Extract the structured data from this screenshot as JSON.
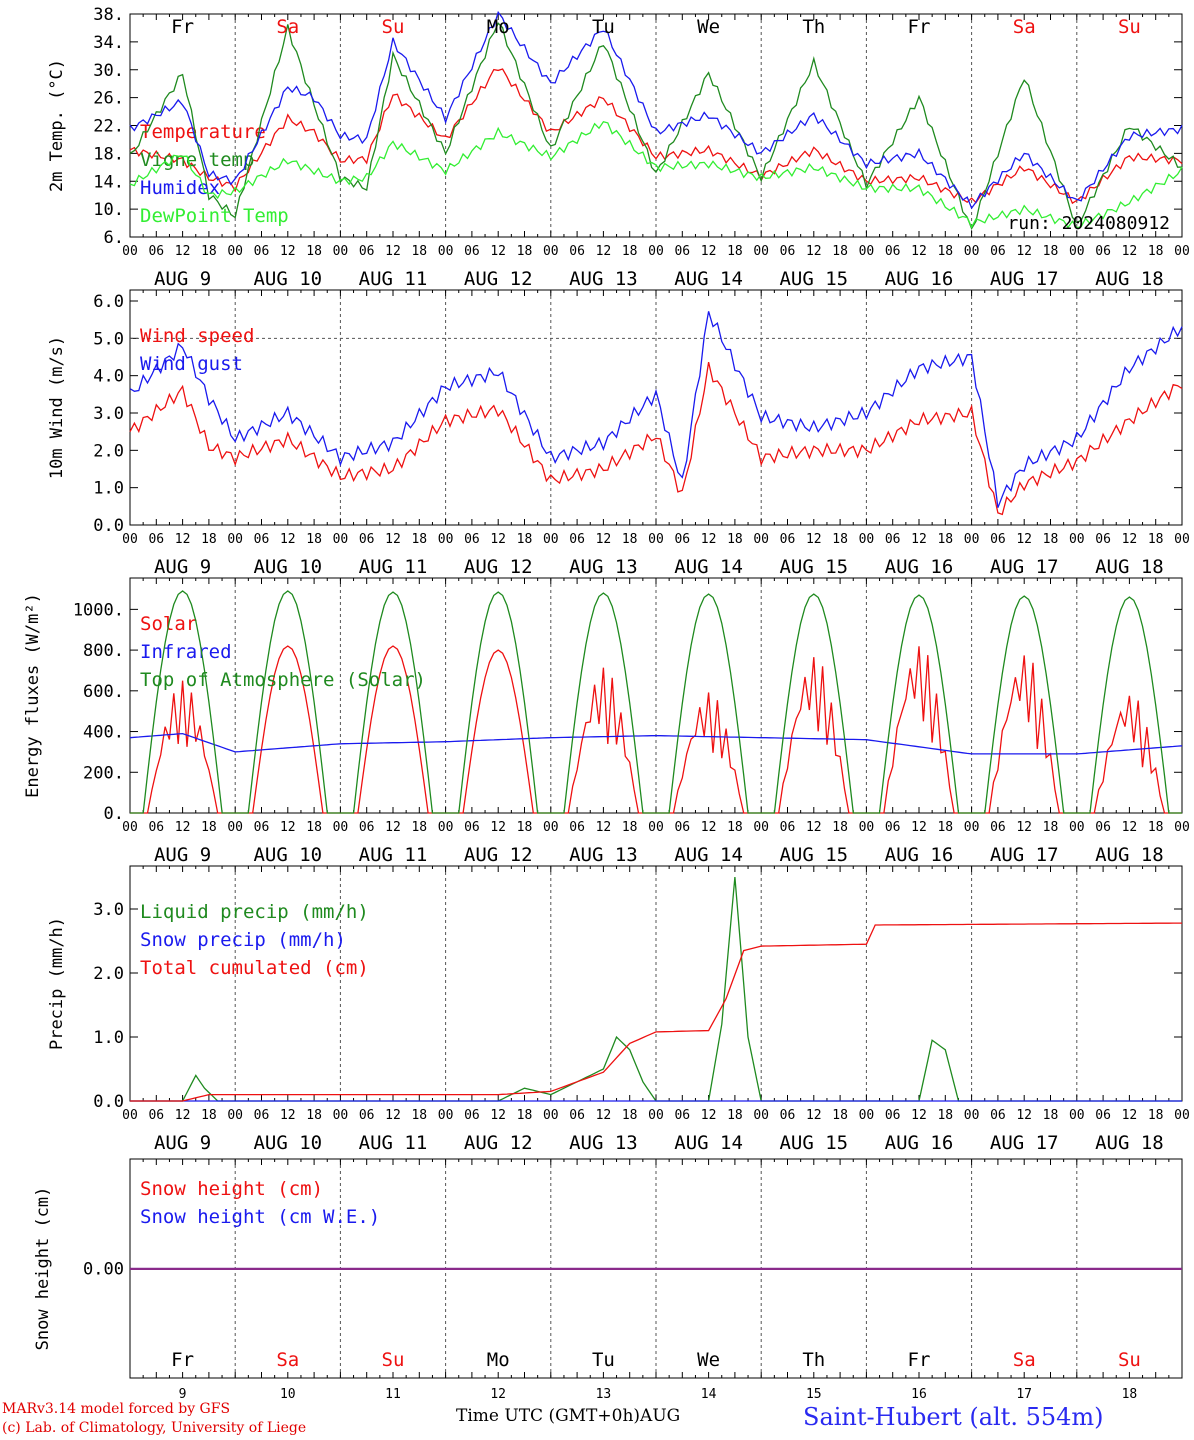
{
  "colors": {
    "red": "#ee1111",
    "blue": "#1a1aee",
    "darkgreen": "#1f8a1f",
    "lightgreen": "#33ee33",
    "purple": "#8a2a8a",
    "grid": "#555555"
  },
  "days": {
    "weekday_labels": [
      "Fr",
      "Sa",
      "Su",
      "Mo",
      "Tu",
      "We",
      "Th",
      "Fr",
      "Sa",
      "Su"
    ],
    "weekend_flags": [
      false,
      true,
      true,
      false,
      false,
      false,
      false,
      false,
      true,
      true
    ],
    "date_labels": [
      "AUG  9",
      "AUG 10",
      "AUG 11",
      "AUG 12",
      "AUG 13",
      "AUG 14",
      "AUG 15",
      "AUG 16",
      "AUG 17",
      "AUG 18"
    ],
    "day_numbers": [
      "9",
      "10",
      "11",
      "12",
      "13",
      "14",
      "15",
      "16",
      "17",
      "18"
    ],
    "hour_labels": [
      "00",
      "06",
      "12",
      "18"
    ],
    "final_hour_label": "00"
  },
  "footer": {
    "credit_line1": "MARv3.14 model forced by GFS",
    "credit_line2": "(c) Lab. of Climatology, University of Liege",
    "x_title": "Time UTC (GMT+0h)AUG",
    "station": "Saint-Hubert (alt. 554m)"
  },
  "chart_data": [
    {
      "type": "line",
      "ylabel": "2m Temp. (°C)",
      "ylim": [
        6,
        38
      ],
      "yticks": [
        "38.",
        "34.",
        "30.",
        "26.",
        "22.",
        "18.",
        "14.",
        "10.",
        "6."
      ],
      "ytick_values": [
        38,
        34,
        30,
        26,
        22,
        18,
        14,
        10,
        6
      ],
      "annotation": "run: 2024080912",
      "reference_line": null,
      "x_hours": [
        0,
        12,
        18,
        24,
        36,
        42,
        48,
        54,
        60,
        72,
        84,
        96,
        108,
        120,
        132,
        144,
        156,
        168,
        180,
        192,
        204,
        216,
        228,
        240
      ],
      "series": [
        {
          "name": "Temperature",
          "color": "#ee1111",
          "values": [
            18.5,
            17.0,
            14.5,
            13.2,
            23.0,
            21.0,
            17.0,
            17.2,
            26.5,
            20.0,
            30.5,
            21.0,
            26.0,
            17.5,
            18.5,
            14.7,
            18.5,
            14.0,
            14.5,
            11.0,
            16.0,
            11.0,
            17.5,
            17.0
          ]
        },
        {
          "name": "Vigne temp",
          "color": "#1f8a1f",
          "values": [
            17.5,
            29.5,
            12.0,
            9.0,
            36.0,
            25.0,
            14.5,
            13.0,
            32.0,
            18.0,
            37.0,
            18.5,
            34.0,
            15.0,
            29.5,
            14.5,
            31.0,
            13.5,
            26.0,
            7.0,
            29.0,
            7.5,
            22.0,
            16.0
          ]
        },
        {
          "name": "Humidex",
          "color": "#1a1aee",
          "values": [
            21.5,
            25.5,
            15.0,
            14.0,
            27.5,
            26.0,
            20.5,
            20.0,
            34.0,
            23.0,
            38.0,
            28.0,
            36.0,
            21.0,
            23.5,
            18.0,
            23.5,
            16.5,
            18.0,
            10.5,
            18.0,
            11.0,
            20.5,
            21.5
          ]
        },
        {
          "name": "DewPoint Temp",
          "color": "#33ee33",
          "values": [
            13.5,
            18.0,
            12.0,
            12.5,
            17.0,
            15.5,
            14.0,
            14.5,
            19.5,
            15.5,
            21.0,
            17.5,
            22.5,
            16.0,
            16.5,
            14.5,
            16.0,
            13.0,
            13.0,
            8.0,
            10.0,
            7.5,
            11.0,
            15.5
          ]
        }
      ]
    },
    {
      "type": "line",
      "ylabel": "10m Wind (m/s)",
      "ylim": [
        0,
        6
      ],
      "yticks": [
        "6.0",
        "5.0",
        "4.0",
        "3.0",
        "2.0",
        "1.0",
        "0.0"
      ],
      "ytick_values": [
        6,
        5,
        4,
        3,
        2,
        1,
        0
      ],
      "annotation": "",
      "reference_line": 5.0,
      "x_hours": [
        0,
        12,
        18,
        24,
        36,
        48,
        60,
        72,
        84,
        96,
        108,
        120,
        126,
        132,
        144,
        156,
        168,
        180,
        192,
        198,
        204,
        216,
        228,
        240
      ],
      "series": [
        {
          "name": "Wind speed",
          "color": "#ee1111",
          "values": [
            2.5,
            3.6,
            2.1,
            1.8,
            2.3,
            1.3,
            1.5,
            2.8,
            3.1,
            1.2,
            1.5,
            2.4,
            0.8,
            4.2,
            1.8,
            2.0,
            2.0,
            2.8,
            3.0,
            0.3,
            1.1,
            1.7,
            2.8,
            3.8
          ]
        },
        {
          "name": "Wind gust",
          "color": "#1a1aee",
          "values": [
            3.5,
            4.8,
            3.4,
            2.3,
            3.0,
            1.8,
            2.2,
            3.7,
            4.1,
            1.8,
            2.2,
            3.5,
            1.1,
            5.7,
            2.9,
            2.6,
            3.0,
            4.2,
            4.5,
            0.6,
            1.6,
            2.3,
            4.2,
            5.3
          ]
        }
      ]
    },
    {
      "type": "line",
      "ylabel": "Energy fluxes (W/m²)",
      "ylim": [
        0,
        1100
      ],
      "yticks": [
        "1000.",
        "800.",
        "600.",
        "400.",
        "200.",
        "0."
      ],
      "ytick_values": [
        1000,
        800,
        600,
        400,
        200,
        0
      ],
      "annotation": "",
      "reference_line": null,
      "series": [
        {
          "name": "Solar",
          "color": "#ee1111",
          "daily_peak": [
            650,
            820,
            820,
            800,
            720,
            600,
            780,
            840,
            800,
            600
          ]
        },
        {
          "name": "Infrared",
          "color": "#1a1aee",
          "x_hours": [
            0,
            12,
            24,
            48,
            72,
            96,
            120,
            144,
            168,
            192,
            216,
            240
          ],
          "values": [
            370,
            390,
            300,
            340,
            350,
            370,
            380,
            370,
            360,
            290,
            290,
            330
          ]
        },
        {
          "name": "Top of Atmosphere (Solar)",
          "color": "#1f8a1f",
          "daily_peak": [
            1090,
            1090,
            1085,
            1085,
            1080,
            1075,
            1075,
            1070,
            1065,
            1060
          ]
        }
      ]
    },
    {
      "type": "line",
      "ylabel": "Precip (mm/h)",
      "ylim": [
        0,
        3.5
      ],
      "yticks": [
        "3.0",
        "2.0",
        "1.0",
        "0.0"
      ],
      "ytick_values": [
        3,
        2,
        1,
        0
      ],
      "annotation": "",
      "reference_line": null,
      "series": [
        {
          "name": "Liquid precip (mm/h)",
          "color": "#1f8a1f",
          "x_hours": [
            0,
            12,
            15,
            17,
            20,
            84,
            90,
            96,
            102,
            108,
            111,
            114,
            117,
            120,
            132,
            135,
            138,
            141,
            144,
            180,
            183,
            186,
            189,
            240
          ],
          "values": [
            0,
            0,
            0.4,
            0.2,
            0,
            0,
            0.2,
            0.1,
            0.3,
            0.5,
            1.0,
            0.8,
            0.3,
            0,
            0,
            1.2,
            3.5,
            1.0,
            0,
            0,
            0.95,
            0.8,
            0,
            0
          ]
        },
        {
          "name": "Snow precip (mm/h)",
          "color": "#1a1aee",
          "x_hours": [
            0,
            240
          ],
          "values": [
            0,
            0
          ]
        },
        {
          "name": "Total cumulated (cm)",
          "color": "#ee1111",
          "x_hours": [
            0,
            12,
            18,
            84,
            96,
            108,
            114,
            120,
            132,
            136,
            140,
            144,
            168,
            170,
            240
          ],
          "values": [
            0,
            0,
            0.1,
            0.1,
            0.15,
            0.45,
            0.9,
            1.08,
            1.1,
            1.6,
            2.35,
            2.42,
            2.45,
            2.75,
            2.78
          ]
        }
      ]
    },
    {
      "type": "line",
      "ylabel": "Snow height (cm)",
      "ylim": [
        -1,
        1
      ],
      "yticks": [
        "0.00"
      ],
      "ytick_values": [
        0
      ],
      "annotation": "",
      "reference_line": null,
      "series": [
        {
          "name": "Snow height (cm)",
          "color": "#ee1111",
          "x_hours": [
            0,
            240
          ],
          "values": [
            0,
            0
          ]
        },
        {
          "name": "Snow height (cm W.E.)",
          "color": "#1a1aee",
          "x_hours": [
            0,
            240
          ],
          "values": [
            0,
            0
          ]
        }
      ]
    }
  ]
}
